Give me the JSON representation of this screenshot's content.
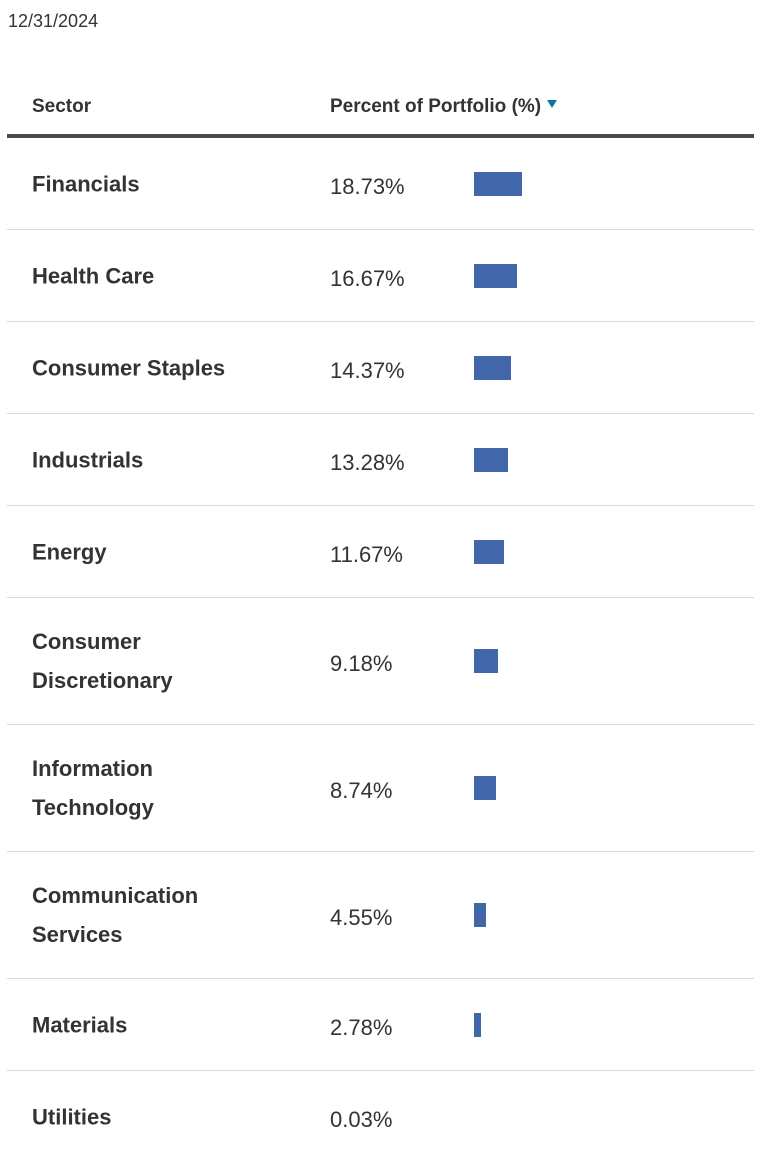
{
  "as_of_date": "12/31/2024",
  "table": {
    "headers": {
      "sector": "Sector",
      "percent": "Percent of Portfolio (%)"
    },
    "sort": "descending",
    "bar_color": "#4166aa",
    "rows": [
      {
        "sector": "Financials",
        "percent": "18.73%",
        "value": 18.73
      },
      {
        "sector": "Health Care",
        "percent": "16.67%",
        "value": 16.67
      },
      {
        "sector": "Consumer Staples",
        "percent": "14.37%",
        "value": 14.37
      },
      {
        "sector": "Industrials",
        "percent": "13.28%",
        "value": 13.28
      },
      {
        "sector": "Energy",
        "percent": "11.67%",
        "value": 11.67
      },
      {
        "sector": "Consumer Discretionary",
        "percent": "9.18%",
        "value": 9.18
      },
      {
        "sector": "Information Technology",
        "percent": "8.74%",
        "value": 8.74
      },
      {
        "sector": "Communication Services",
        "percent": "4.55%",
        "value": 4.55
      },
      {
        "sector": "Materials",
        "percent": "2.78%",
        "value": 2.78
      },
      {
        "sector": "Utilities",
        "percent": "0.03%",
        "value": 0.03
      }
    ]
  }
}
